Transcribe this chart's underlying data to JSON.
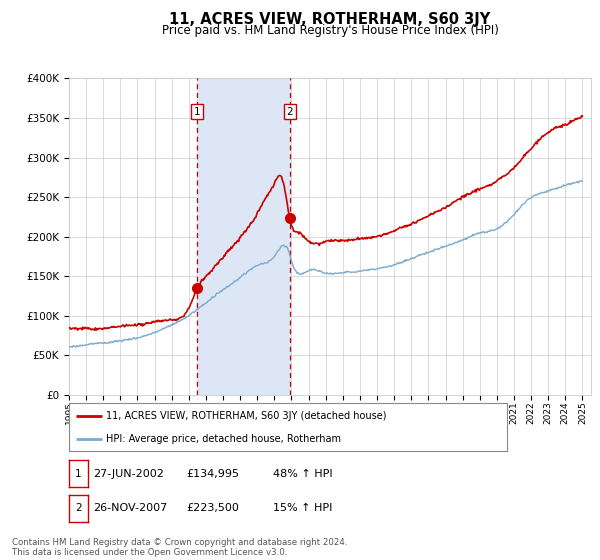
{
  "title": "11, ACRES VIEW, ROTHERHAM, S60 3JY",
  "subtitle": "Price paid vs. HM Land Registry's House Price Index (HPI)",
  "legend_label_red": "11, ACRES VIEW, ROTHERHAM, S60 3JY (detached house)",
  "legend_label_blue": "HPI: Average price, detached house, Rotherham",
  "sale1_label": "1",
  "sale1_date": "27-JUN-2002",
  "sale1_price": 134995,
  "sale1_text": "48% ↑ HPI",
  "sale2_label": "2",
  "sale2_date": "26-NOV-2007",
  "sale2_price": 223500,
  "sale2_text": "15% ↑ HPI",
  "footer": "Contains HM Land Registry data © Crown copyright and database right 2024.\nThis data is licensed under the Open Government Licence v3.0.",
  "xmin": 1995.0,
  "xmax": 2025.5,
  "ymin": 0,
  "ymax": 400000,
  "sale1_x": 2002.484,
  "sale2_x": 2007.898,
  "shade_color": "#dce6f5",
  "line_red": "#cc0000",
  "line_blue": "#7aaad0",
  "grid_color": "#cccccc",
  "background_color": "#ffffff",
  "marker_box_color": "#cc0000",
  "hpi_anchors_x": [
    1995,
    1996,
    1997,
    1998,
    1999,
    2000,
    2001,
    2002,
    2003,
    2004,
    2005,
    2006,
    2007,
    2007.9,
    2008,
    2009,
    2010,
    2011,
    2012,
    2013,
    2014,
    2015,
    2016,
    2017,
    2018,
    2019,
    2020,
    2021,
    2022,
    2023,
    2024,
    2025
  ],
  "hpi_anchors_y": [
    60000,
    62000,
    65000,
    68000,
    72000,
    78000,
    88000,
    100000,
    116000,
    132000,
    148000,
    163000,
    175000,
    178000,
    170000,
    158000,
    155000,
    155000,
    157000,
    160000,
    165000,
    172000,
    180000,
    188000,
    196000,
    205000,
    210000,
    228000,
    250000,
    258000,
    265000,
    270000
  ],
  "red_anchors_x": [
    1995,
    1996,
    1997,
    1998,
    1999,
    2000,
    2001,
    2002,
    2002.484,
    2003,
    2004,
    2005,
    2006,
    2006.5,
    2007,
    2007.5,
    2007.898,
    2008,
    2008.5,
    2009,
    2010,
    2011,
    2012,
    2013,
    2014,
    2015,
    2016,
    2017,
    2018,
    2019,
    2020,
    2021,
    2022,
    2023,
    2024,
    2024.5,
    2025
  ],
  "red_anchors_y": [
    85000,
    86000,
    87000,
    89000,
    90000,
    92000,
    95000,
    110000,
    134995,
    150000,
    175000,
    200000,
    230000,
    250000,
    268000,
    272000,
    223500,
    215000,
    205000,
    195000,
    195000,
    196000,
    198000,
    200000,
    207000,
    215000,
    225000,
    235000,
    248000,
    258000,
    268000,
    285000,
    310000,
    330000,
    340000,
    345000,
    350000
  ]
}
